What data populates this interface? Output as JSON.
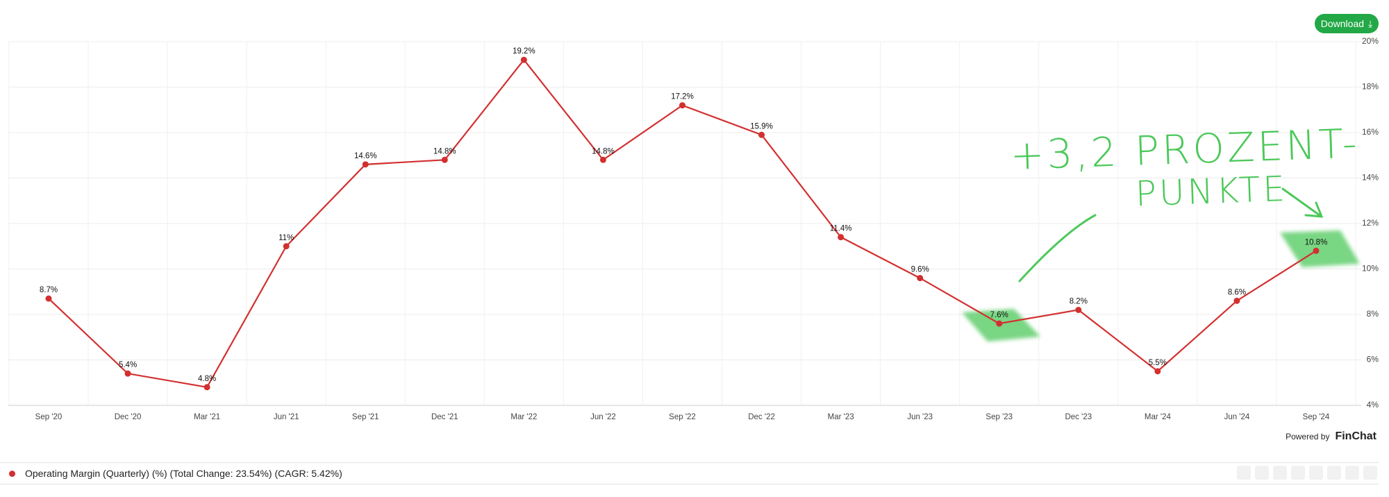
{
  "chart_data": {
    "type": "line",
    "categories": [
      "Sep '20",
      "Dec '20",
      "Mar '21",
      "Jun '21",
      "Sep '21",
      "Dec '21",
      "Mar '22",
      "Jun '22",
      "Sep '22",
      "Dec '22",
      "Mar '23",
      "Jun '23",
      "Sep '23",
      "Dec '23",
      "Mar '24",
      "Jun '24",
      "Sep '24"
    ],
    "series": [
      {
        "name": "Operating Margin (Quarterly) (%) (Total Change: 23.54%) (CAGR: 5.42%)",
        "color": "#d32f2f",
        "values": [
          8.7,
          5.4,
          4.8,
          11,
          14.6,
          14.8,
          19.2,
          14.8,
          17.2,
          15.9,
          11.4,
          9.6,
          7.6,
          8.2,
          5.5,
          8.6,
          10.8
        ],
        "value_labels": [
          "8.7%",
          "5.4%",
          "4.8%",
          "11%",
          "14.6%",
          "14.8%",
          "19.2%",
          "14.8%",
          "17.2%",
          "15.9%",
          "11.4%",
          "9.6%",
          "7.6%",
          "8.2%",
          "5.5%",
          "8.6%",
          "10.8%"
        ]
      }
    ],
    "ylim": [
      4,
      20
    ],
    "yticks": [
      {
        "value": 4,
        "label": "4%"
      },
      {
        "value": 6,
        "label": "6%"
      },
      {
        "value": 8,
        "label": "8%"
      },
      {
        "value": 10,
        "label": "10%"
      },
      {
        "value": 12,
        "label": "12%"
      },
      {
        "value": 14,
        "label": "14%"
      },
      {
        "value": 16,
        "label": "16%"
      },
      {
        "value": 18,
        "label": "18%"
      },
      {
        "value": 20,
        "label": "20%"
      }
    ],
    "grid": true,
    "annotations": [
      "+3,2 PROZENT-",
      "PUNKTE"
    ]
  },
  "download": "Download",
  "powered_by": "Powered by",
  "brand": "FinChat"
}
